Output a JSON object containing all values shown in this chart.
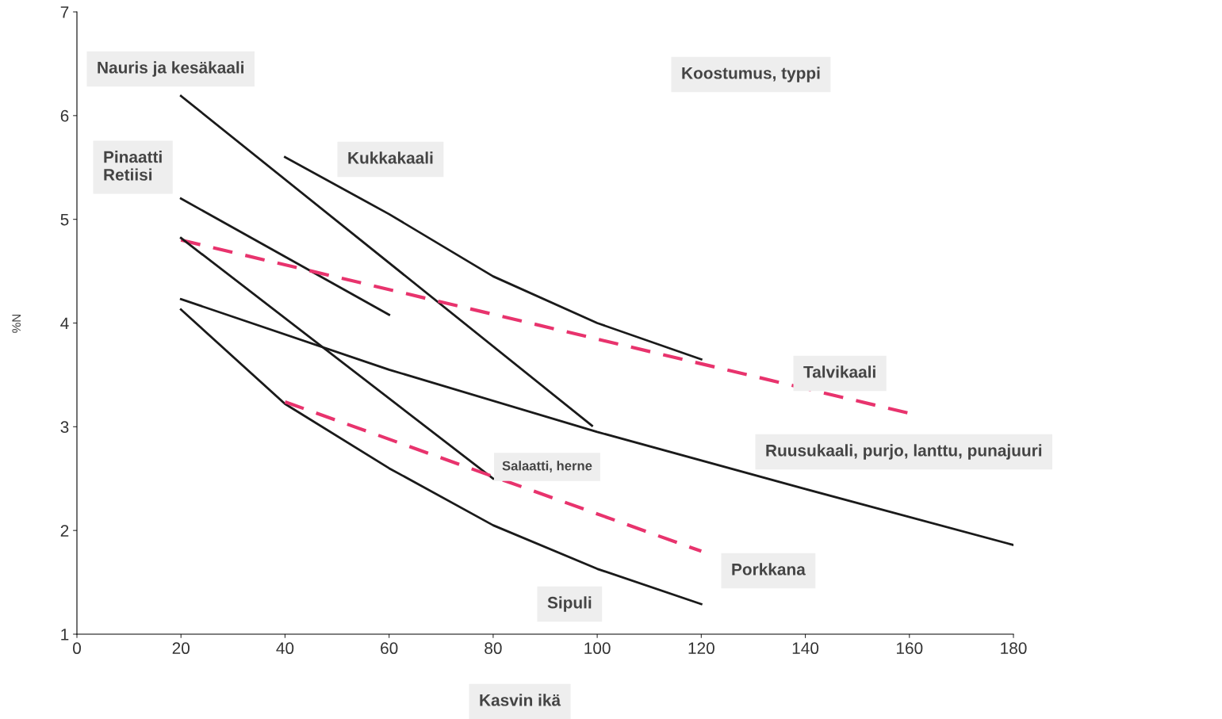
{
  "chart_data": {
    "type": "line",
    "title": "Koostumus, typpi",
    "xlabel": "Kasvin ikä",
    "ylabel": "%N",
    "xlim": [
      0,
      180
    ],
    "xticks": [
      0,
      20,
      40,
      60,
      80,
      100,
      120,
      140,
      160,
      180
    ],
    "ylim": [
      1,
      7
    ],
    "yticks": [
      1,
      2,
      3,
      4,
      5,
      6,
      7
    ],
    "grid": false,
    "legend": false,
    "marker": "none",
    "series": [
      {
        "name": "Nauris ja kesäkaali",
        "color": "#1a1a1a",
        "line_style": "solid",
        "x": [
          20,
          99
        ],
        "values": [
          6.19,
          3.01
        ]
      },
      {
        "name": "Kukkakaali",
        "color": "#1a1a1a",
        "line_style": "solid",
        "x": [
          40,
          60,
          80,
          100,
          120
        ],
        "values": [
          5.6,
          5.05,
          4.45,
          4.0,
          3.65
        ]
      },
      {
        "name": "Pinaatti\nRetiisi",
        "color": "#1a1a1a",
        "line_style": "solid",
        "x": [
          20,
          60
        ],
        "values": [
          5.2,
          4.08
        ]
      },
      {
        "name": "Talvikaali",
        "color": "#e8336d",
        "line_style": "dashed",
        "x": [
          20,
          160
        ],
        "values": [
          4.8,
          3.13
        ]
      },
      {
        "name": "Salaatti, herne",
        "color": "#1a1a1a",
        "line_style": "solid",
        "x": [
          20,
          80
        ],
        "values": [
          4.82,
          2.5
        ]
      },
      {
        "name": "Ruusukaali, purjo, lanttu, punajuuri",
        "color": "#1a1a1a",
        "line_style": "solid",
        "x": [
          20,
          60,
          100,
          140,
          180
        ],
        "values": [
          4.23,
          3.55,
          2.95,
          2.4,
          1.86
        ]
      },
      {
        "name": "Sipuli",
        "color": "#1a1a1a",
        "line_style": "solid",
        "x": [
          20,
          40,
          60,
          80,
          100,
          120
        ],
        "values": [
          4.13,
          3.22,
          2.6,
          2.05,
          1.63,
          1.29
        ]
      },
      {
        "name": "Porkkana",
        "color": "#e8336d",
        "line_style": "dashed",
        "x": [
          40,
          120
        ],
        "values": [
          3.24,
          1.8
        ]
      }
    ]
  }
}
